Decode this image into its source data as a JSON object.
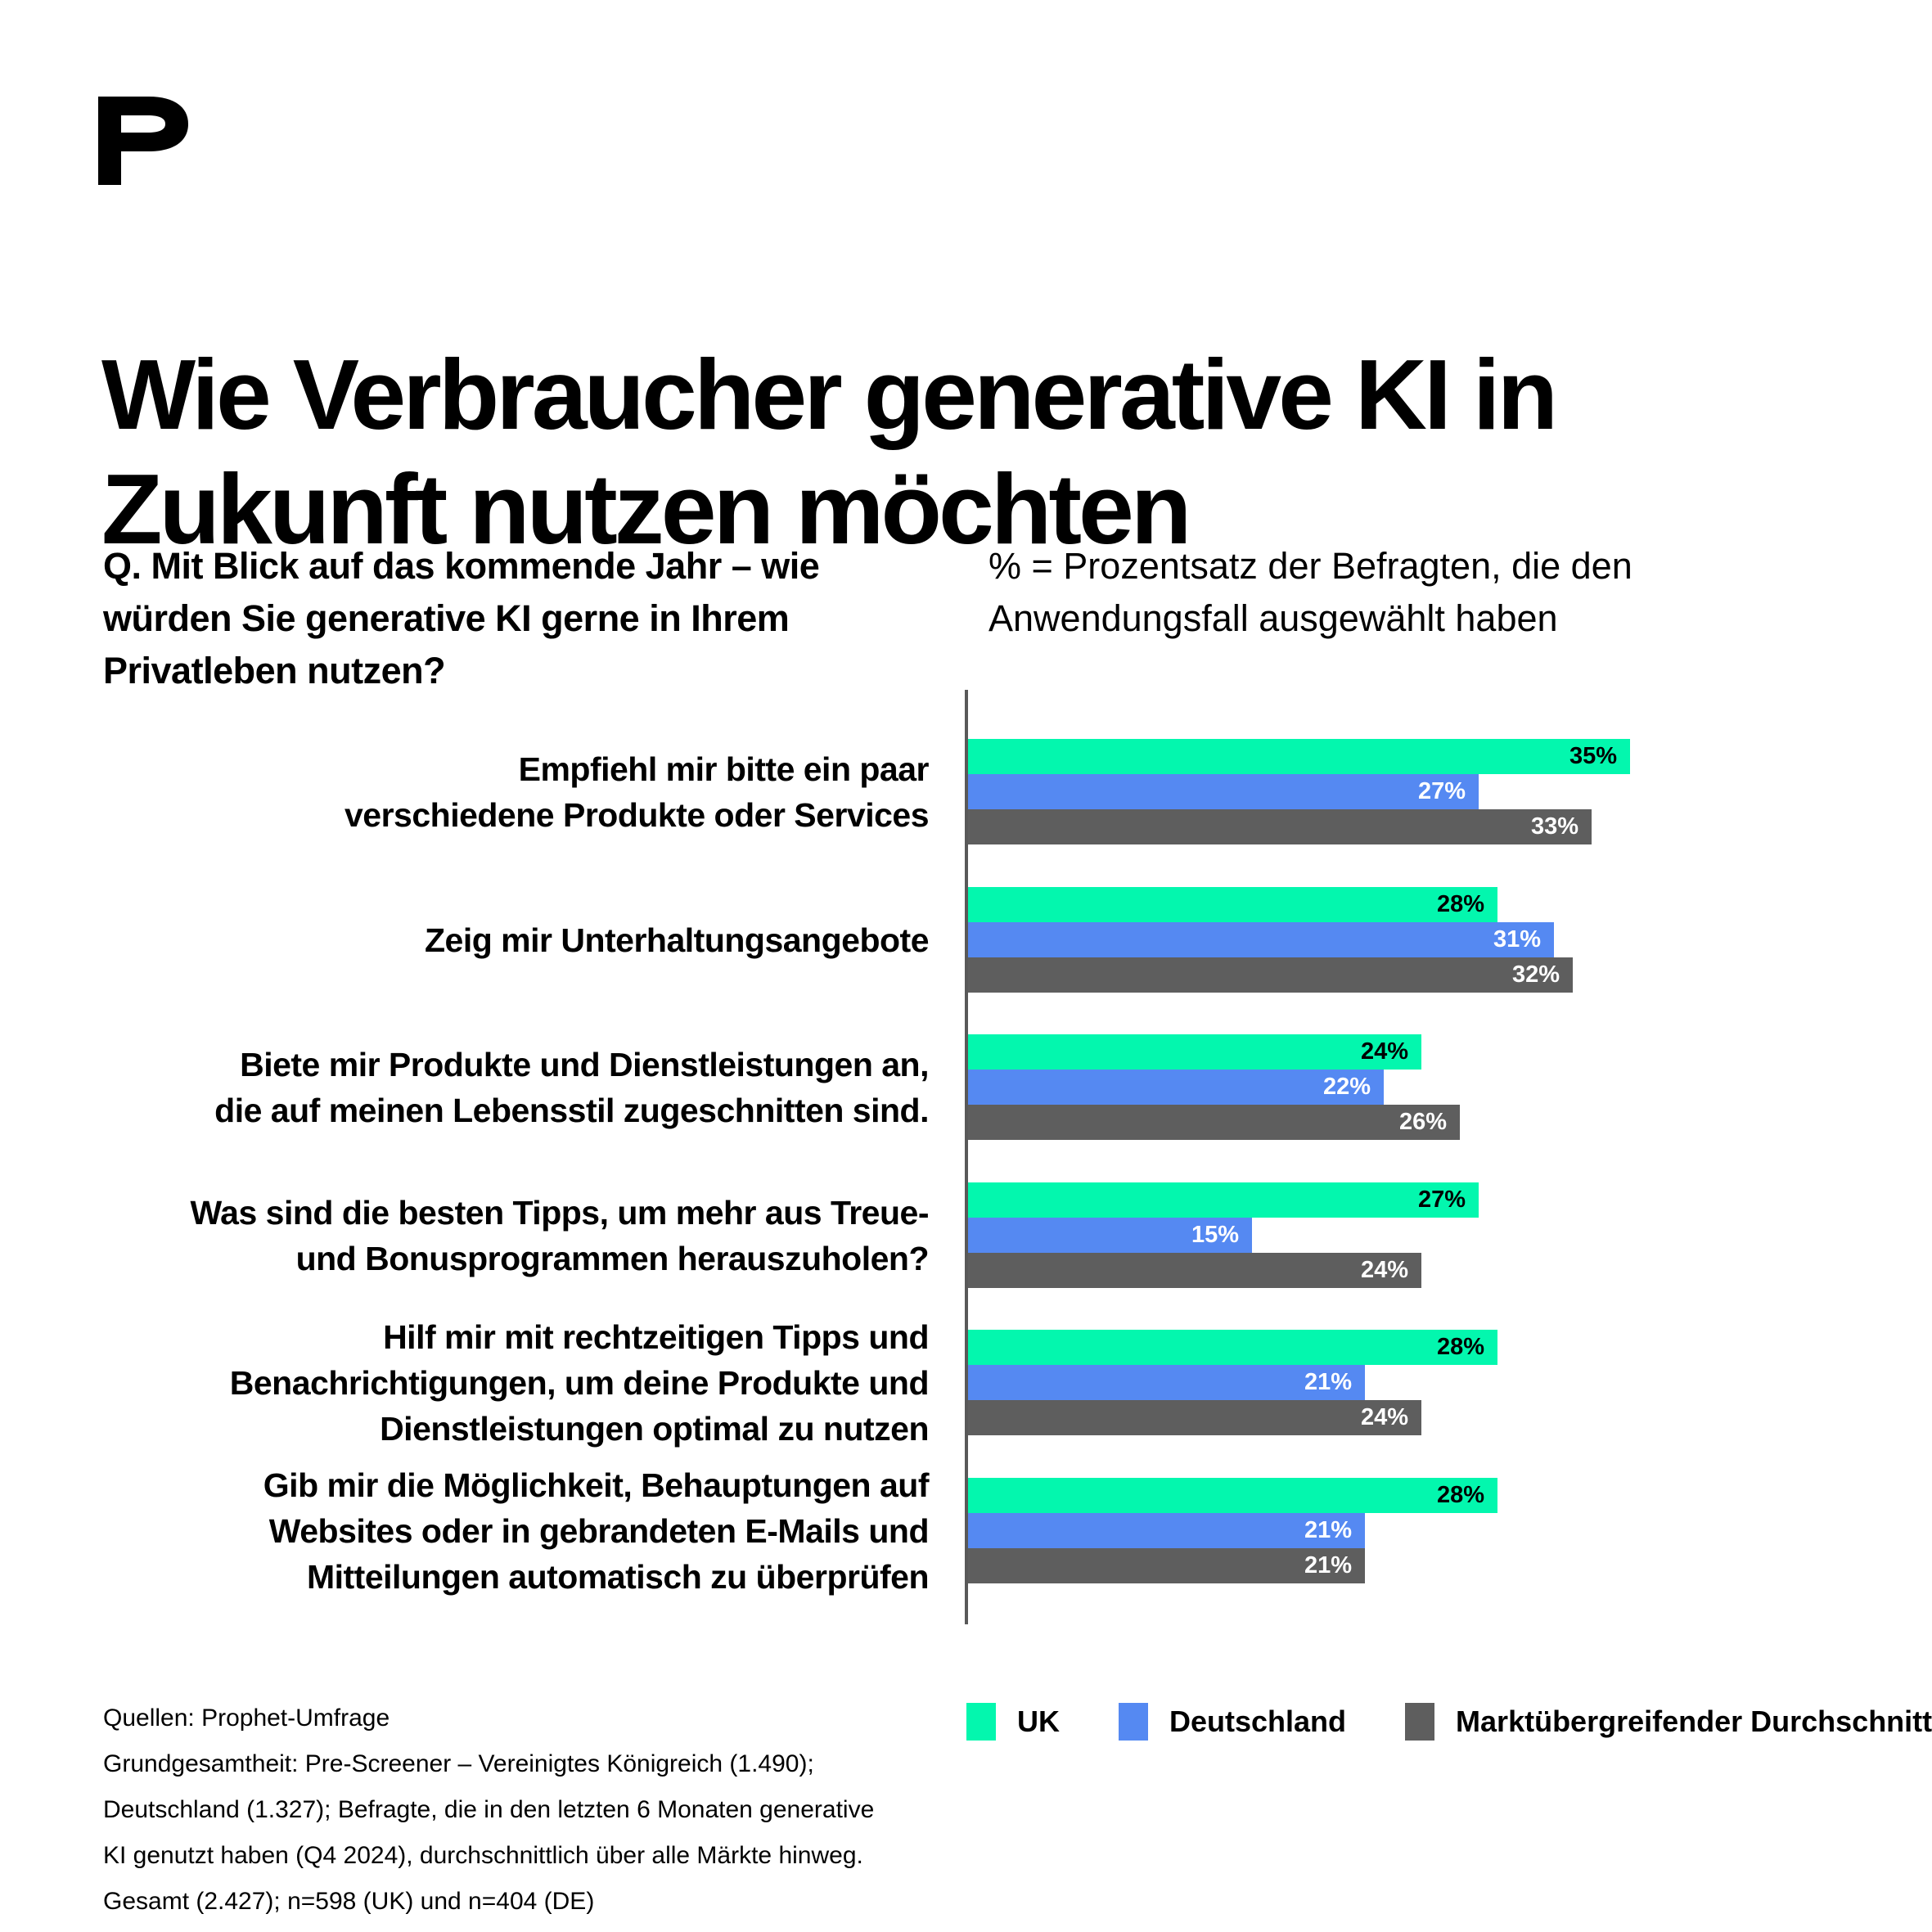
{
  "brand": {
    "logo_icon": "prophet-p-logo"
  },
  "title": "Wie Verbraucher generative KI in\nZukunft nutzen möchten",
  "question": "Q. Mit Blick auf das kommende Jahr – wie\nwürden Sie generative KI gerne in Ihrem\nPrivatleben nutzen?",
  "note": "% = Prozentsatz der Befragten, die den\nAnwendungsfall ausgewählt haben",
  "chart_data": {
    "type": "bar",
    "orientation": "horizontal",
    "grid": false,
    "legend_position": "bottom",
    "value_suffix": "%",
    "xlim": [
      0,
      35
    ],
    "axis_line_color": "#595959",
    "categories": [
      "Empfiehl mir bitte ein paar\nverschiedene Produkte oder Services",
      "Zeig mir Unterhaltungsangebote",
      "Biete mir Produkte und Dienstleistungen an,\ndie auf meinen Lebensstil zugeschnitten sind.",
      "Was sind die besten Tipps, um mehr aus Treue-\nund Bonusprogrammen herauszuholen?",
      "Hilf mir mit rechtzeitigen Tipps und\nBenachrichtigungen, um deine Produkte und\nDienstleistungen optimal zu nutzen",
      "Gib mir die Möglichkeit, Behauptungen auf\nWebsites oder in gebrandeten E-Mails und\nMitteilungen automatisch zu überprüfen"
    ],
    "series": [
      {
        "key": "uk",
        "name": "UK",
        "color": "#03F7AE",
        "label_color": "#000000",
        "values": [
          35,
          28,
          24,
          27,
          28,
          28
        ]
      },
      {
        "key": "deutschland",
        "name": "Deutschland",
        "color": "#5589F2",
        "label_color": "#FFFFFF",
        "values": [
          27,
          31,
          22,
          15,
          21,
          21
        ]
      },
      {
        "key": "marktdurchschnitt",
        "name": "Marktübergreifender Durchschnitt",
        "color": "#5E5E5E",
        "label_color": "#FFFFFF",
        "values": [
          33,
          32,
          26,
          24,
          24,
          21
        ]
      }
    ]
  },
  "footer": {
    "source_text": "Quellen: Prophet-Umfrage\nGrundgesamtheit: Pre-Screener – Vereinigtes Königreich (1.490);\nDeutschland (1.327); Befragte, die in den letzten 6 Monaten generative\nKI genutzt haben (Q4 2024), durchschnittlich über alle Märkte hinweg.\nGesamt (2.427); n=598 (UK) und n=404 (DE)"
  }
}
